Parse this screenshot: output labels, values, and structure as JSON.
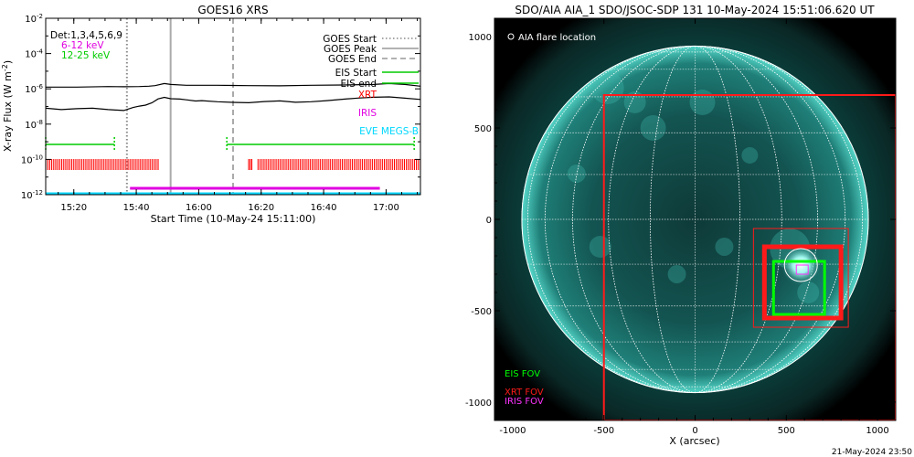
{
  "chart_data": [
    {
      "type": "line",
      "title": "GOES16 XRS",
      "xlabel": "Start Time (10-May-24 15:11:00)",
      "ylabel": "X-ray Flux (W m",
      "ylabel_sup": "-2",
      "ylabel_end": ")",
      "x_unit": "minutes since 15:11",
      "xlim": [
        0,
        120
      ],
      "ylim_exp": [
        -12,
        -2
      ],
      "yscale": "log",
      "x_ticks": [
        {
          "x": 9,
          "label": "15:20"
        },
        {
          "x": 29,
          "label": "15:40"
        },
        {
          "x": 49,
          "label": "16:00"
        },
        {
          "x": 69,
          "label": "16:20"
        },
        {
          "x": 89,
          "label": "16:40"
        },
        {
          "x": 109,
          "label": "17:00"
        }
      ],
      "y_ticks": [
        {
          "exp": -12,
          "label": "10",
          "sup": "-12"
        },
        {
          "exp": -10,
          "label": "10",
          "sup": "-10"
        },
        {
          "exp": -8,
          "label": "10",
          "sup": "-8"
        },
        {
          "exp": -6,
          "label": "10",
          "sup": "-6"
        },
        {
          "exp": -4,
          "label": "10",
          "sup": "-4"
        },
        {
          "exp": -2,
          "label": "10",
          "sup": "-2"
        }
      ],
      "detectors_text": "Det:1,3,4,5,6,9",
      "energy_labels": [
        {
          "text": "6-12 keV",
          "color": "#e000e0"
        },
        {
          "text": "12-25 keV",
          "color": "#00cc00"
        }
      ],
      "series": [
        {
          "name": "",
          "color": "#000000",
          "x": [
            0,
            10,
            20,
            25,
            30,
            33,
            35,
            38,
            40,
            45,
            55,
            65,
            75,
            85,
            95,
            105,
            110,
            115,
            120
          ],
          "log_y": [
            -5.9,
            -5.9,
            -5.87,
            -5.88,
            -5.87,
            -5.85,
            -5.82,
            -5.7,
            -5.75,
            -5.8,
            -5.8,
            -5.82,
            -5.83,
            -5.8,
            -5.78,
            -5.75,
            -5.7,
            -5.75,
            -5.85
          ]
        },
        {
          "name": "",
          "color": "#000000",
          "x": [
            0,
            5,
            10,
            15,
            20,
            25,
            28,
            30,
            32,
            34,
            36,
            38,
            40,
            43,
            45,
            48,
            50,
            55,
            60,
            65,
            70,
            75,
            80,
            85,
            90,
            95,
            100,
            105,
            110,
            115,
            120
          ],
          "log_y": [
            -7.1,
            -7.2,
            -7.15,
            -7.1,
            -7.15,
            -7.2,
            -7.05,
            -7.0,
            -6.95,
            -6.8,
            -6.55,
            -6.45,
            -6.55,
            -6.6,
            -6.65,
            -6.7,
            -6.65,
            -6.7,
            -6.75,
            -6.8,
            -6.75,
            -6.7,
            -6.75,
            -6.7,
            -6.65,
            -6.6,
            -6.55,
            -6.5,
            -6.45,
            -6.5,
            -6.6
          ]
        }
      ],
      "events": [
        {
          "name": "GOES Start",
          "x": 26,
          "style": "dotted",
          "color": "#888888"
        },
        {
          "name": "GOES Peak",
          "x": 40,
          "style": "solid",
          "color": "#aaaaaa"
        },
        {
          "name": "GOES End",
          "x": 60,
          "style": "dashed",
          "color": "#aaaaaa"
        }
      ],
      "legend": [
        {
          "name": "GOES Start",
          "style": "dotted",
          "color": "#888888"
        },
        {
          "name": "GOES Peak",
          "style": "solid",
          "color": "#999999"
        },
        {
          "name": "GOES End",
          "style": "dashed",
          "color": "#999999"
        },
        {
          "name": "EIS Start",
          "style": "solid",
          "color": "#00cc00"
        },
        {
          "name": "EIS end",
          "style": "solid",
          "color": "#00cc00"
        }
      ],
      "instrument_labels": [
        {
          "text": "XRT",
          "color": "#ff0000"
        },
        {
          "text": "IRIS",
          "color": "#e000e0"
        },
        {
          "text": "EVE MEGS-B",
          "color": "#00d8ff"
        }
      ],
      "eis_intervals": [
        [
          0,
          22
        ],
        [
          58,
          118
        ]
      ],
      "xrt_segments": [
        [
          0,
          36
        ],
        [
          65,
          66
        ],
        [
          68,
          120
        ]
      ],
      "iris_interval": [
        27,
        107
      ],
      "eve_interval": [
        0,
        120
      ]
    },
    {
      "type": "image",
      "title": "SDO/AIA AIA_1 SDO/JSOC-SDP 131 10-May-2024 15:51:06.620 UT",
      "xlabel": "X (arcsec)",
      "xlim": [
        -1100,
        1100
      ],
      "ylim": [
        -1100,
        1100
      ],
      "x_ticks": [
        -1000,
        -500,
        0,
        500,
        1000
      ],
      "y_ticks": [
        -1000,
        -500,
        0,
        500,
        1000
      ],
      "solar_radius_arcsec": 950,
      "flare_location": {
        "x": 580,
        "y": -250
      },
      "flare_legend": "AIA flare location",
      "fov_labels": [
        {
          "text": "EIS FOV",
          "color": "#00ff00"
        },
        {
          "text": "XRT FOV",
          "color": "#ff1a1a"
        },
        {
          "text": "IRIS FOV",
          "color": "#ff33ff"
        }
      ],
      "fovs": [
        {
          "name": "XRT FOV",
          "color": "#ff1a1a",
          "x0": -500,
          "y0": -1100,
          "x1": 1100,
          "y1": 680,
          "width": 2
        },
        {
          "name": "XRT FOV",
          "color": "#ff1a1a",
          "x0": 320,
          "y0": -590,
          "x1": 840,
          "y1": -50,
          "width": 1
        },
        {
          "name": "XRT FOV",
          "color": "#ff1a1a",
          "x0": 380,
          "y0": -540,
          "x1": 800,
          "y1": -150,
          "width": 5
        },
        {
          "name": "EIS FOV",
          "color": "#00ff00",
          "x0": 430,
          "y0": -520,
          "x1": 710,
          "y1": -230,
          "width": 3
        },
        {
          "name": "IRIS FOV",
          "color": "#ff33ff",
          "x0": 555,
          "y0": -300,
          "x1": 620,
          "y1": -250,
          "width": 1
        }
      ]
    }
  ],
  "footer_timestamp": "21-May-2024 23:50"
}
